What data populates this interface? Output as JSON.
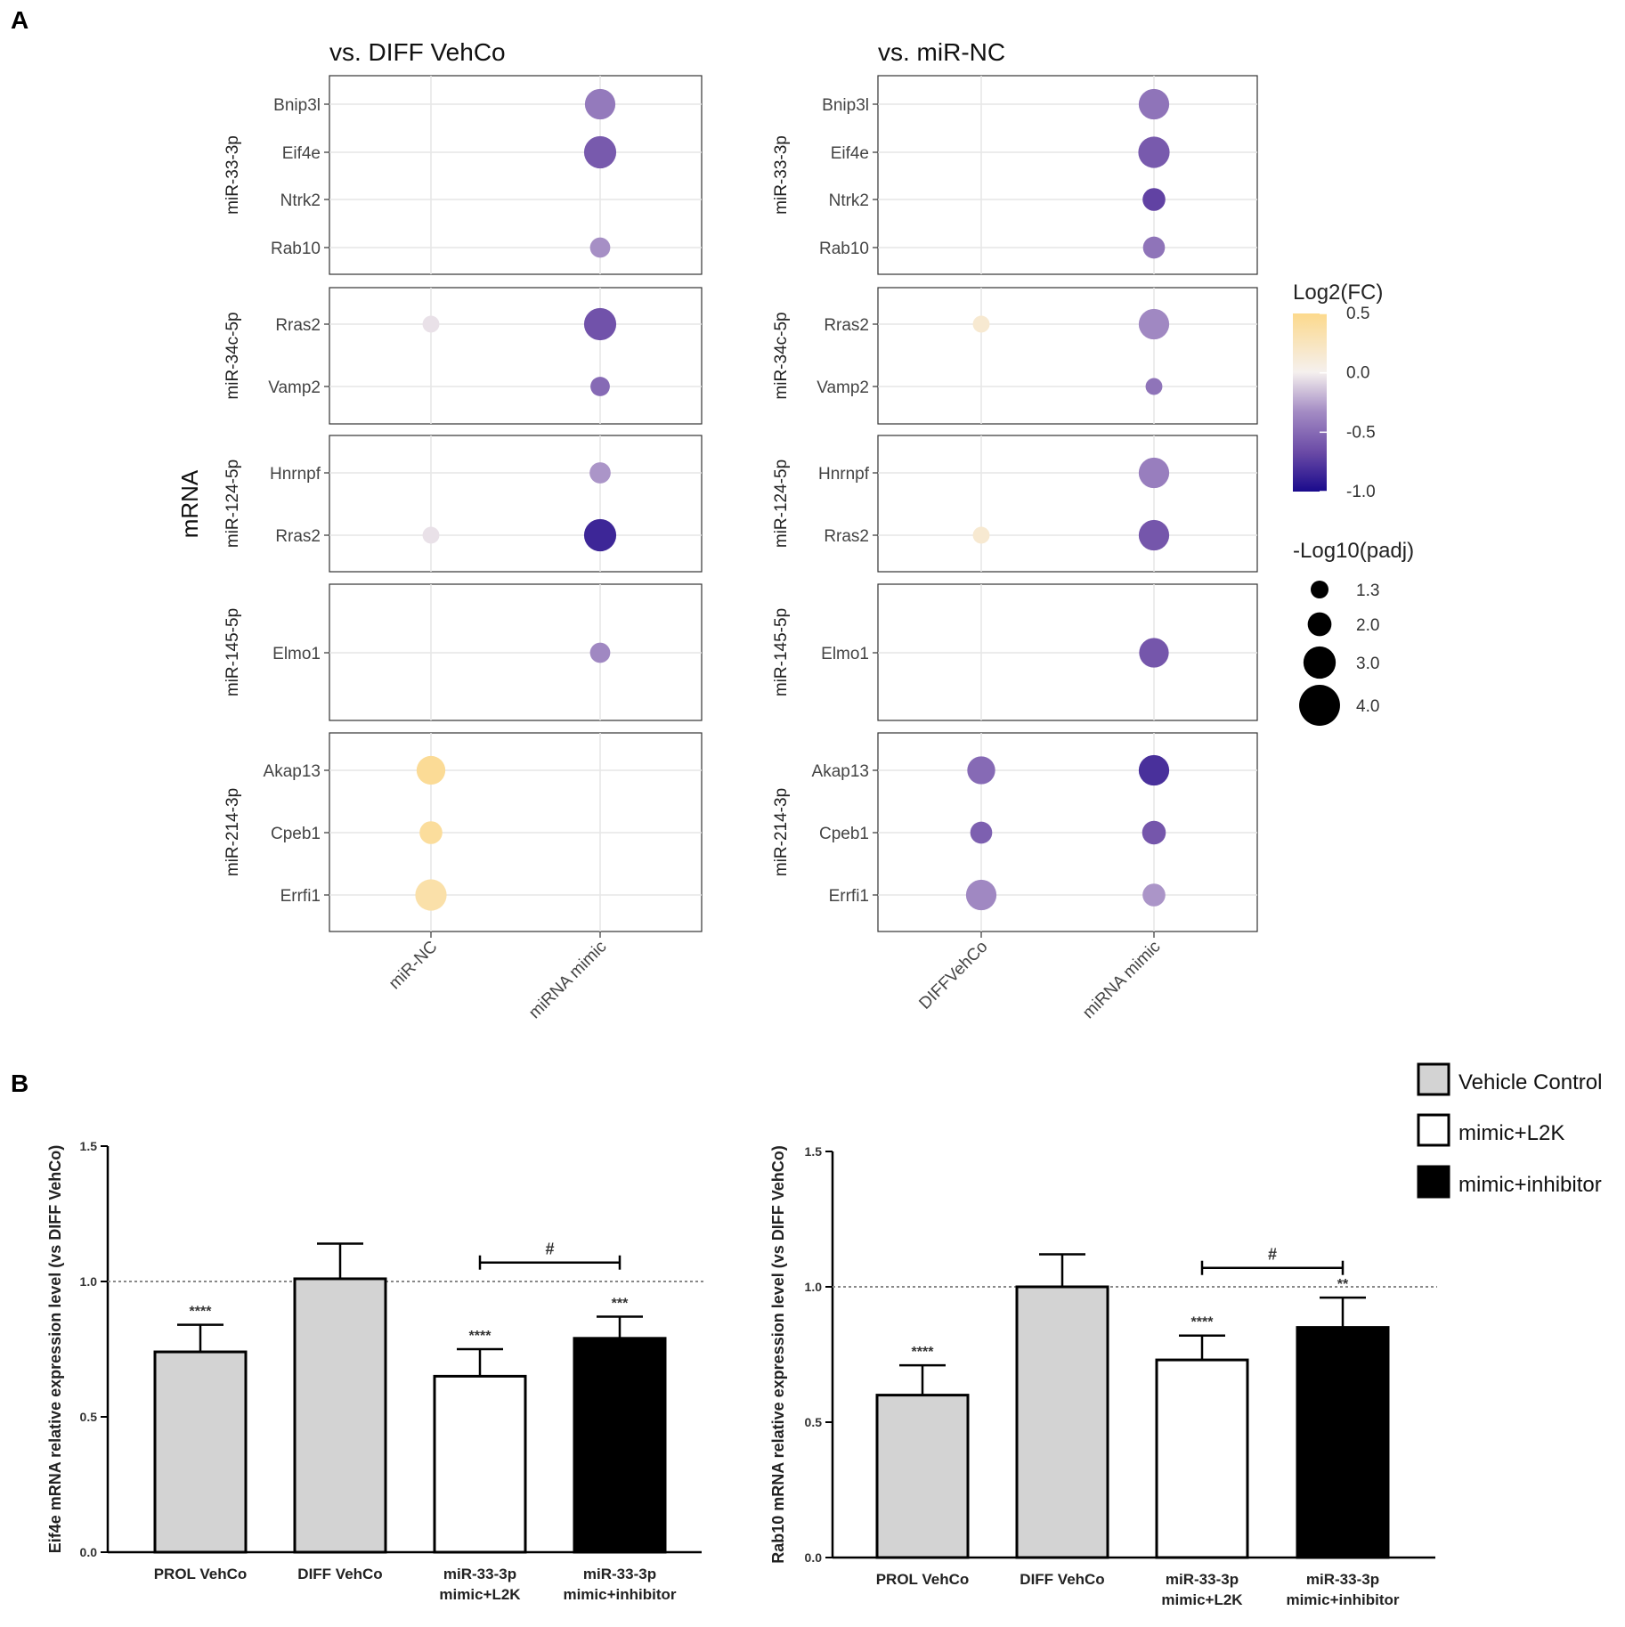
{
  "panel_labels": {
    "a": "A",
    "b": "B"
  },
  "chart_data": [
    {
      "type": "scatter",
      "subtype": "bubble",
      "title": "vs. DIFF VehCo",
      "ylabel": "mRNA",
      "categories": [
        "miR-NC",
        "miRNA mimic"
      ],
      "groups": [
        {
          "name": "miR-33-3p",
          "genes": [
            "Bnip3l",
            "Eif4e",
            "Ntrk2",
            "Rab10"
          ]
        },
        {
          "name": "miR-34c-5p",
          "genes": [
            "Rras2",
            "Vamp2"
          ]
        },
        {
          "name": "miR-124-5p",
          "genes": [
            "Hnrnpf",
            "Rras2"
          ]
        },
        {
          "name": "miR-145-5p",
          "genes": [
            "Elmo1"
          ]
        },
        {
          "name": "miR-214-3p",
          "genes": [
            "Akap13",
            "Cpeb1",
            "Errfi1"
          ]
        }
      ],
      "points": [
        {
          "group": "miR-33-3p",
          "gene": "Bnip3l",
          "x": "miRNA mimic",
          "log2fc": -0.42,
          "neglog10padj": 3.2
        },
        {
          "group": "miR-33-3p",
          "gene": "Eif4e",
          "x": "miRNA mimic",
          "log2fc": -0.58,
          "neglog10padj": 3.4
        },
        {
          "group": "miR-33-3p",
          "gene": "Rab10",
          "x": "miRNA mimic",
          "log2fc": -0.32,
          "neglog10padj": 2.0
        },
        {
          "group": "miR-34c-5p",
          "gene": "Rras2",
          "x": "miR-NC",
          "log2fc": -0.05,
          "neglog10padj": 1.6
        },
        {
          "group": "miR-34c-5p",
          "gene": "Rras2",
          "x": "miRNA mimic",
          "log2fc": -0.62,
          "neglog10padj": 3.4
        },
        {
          "group": "miR-34c-5p",
          "gene": "Vamp2",
          "x": "miRNA mimic",
          "log2fc": -0.5,
          "neglog10padj": 1.9
        },
        {
          "group": "miR-124-5p",
          "gene": "Hnrnpf",
          "x": "miRNA mimic",
          "log2fc": -0.3,
          "neglog10padj": 2.1
        },
        {
          "group": "miR-124-5p",
          "gene": "Rras2",
          "x": "miR-NC",
          "log2fc": -0.05,
          "neglog10padj": 1.6
        },
        {
          "group": "miR-124-5p",
          "gene": "Rras2",
          "x": "miRNA mimic",
          "log2fc": -0.85,
          "neglog10padj": 3.4
        },
        {
          "group": "miR-145-5p",
          "gene": "Elmo1",
          "x": "miRNA mimic",
          "log2fc": -0.35,
          "neglog10padj": 2.0
        },
        {
          "group": "miR-214-3p",
          "gene": "Akap13",
          "x": "miR-NC",
          "log2fc": 0.45,
          "neglog10padj": 3.0
        },
        {
          "group": "miR-214-3p",
          "gene": "Cpeb1",
          "x": "miR-NC",
          "log2fc": 0.42,
          "neglog10padj": 2.3
        },
        {
          "group": "miR-214-3p",
          "gene": "Errfi1",
          "x": "miR-NC",
          "log2fc": 0.35,
          "neglog10padj": 3.3
        }
      ]
    },
    {
      "type": "scatter",
      "subtype": "bubble",
      "title": "vs. miR-NC",
      "ylabel": "",
      "categories": [
        "DIFFVehCo",
        "miRNA mimic"
      ],
      "groups": [
        {
          "name": "miR-33-3p",
          "genes": [
            "Bnip3l",
            "Eif4e",
            "Ntrk2",
            "Rab10"
          ]
        },
        {
          "name": "miR-34c-5p",
          "genes": [
            "Rras2",
            "Vamp2"
          ]
        },
        {
          "name": "miR-124-5p",
          "genes": [
            "Hnrnpf",
            "Rras2"
          ]
        },
        {
          "name": "miR-145-5p",
          "genes": [
            "Elmo1"
          ]
        },
        {
          "name": "miR-214-3p",
          "genes": [
            "Akap13",
            "Cpeb1",
            "Errfi1"
          ]
        }
      ],
      "points": [
        {
          "group": "miR-33-3p",
          "gene": "Bnip3l",
          "x": "miRNA mimic",
          "log2fc": -0.45,
          "neglog10padj": 3.2
        },
        {
          "group": "miR-33-3p",
          "gene": "Eif4e",
          "x": "miRNA mimic",
          "log2fc": -0.58,
          "neglog10padj": 3.3
        },
        {
          "group": "miR-33-3p",
          "gene": "Ntrk2",
          "x": "miRNA mimic",
          "log2fc": -0.7,
          "neglog10padj": 2.3
        },
        {
          "group": "miR-33-3p",
          "gene": "Rab10",
          "x": "miRNA mimic",
          "log2fc": -0.45,
          "neglog10padj": 2.2
        },
        {
          "group": "miR-34c-5p",
          "gene": "Rras2",
          "x": "DIFFVehCo",
          "log2fc": 0.15,
          "neglog10padj": 1.6
        },
        {
          "group": "miR-34c-5p",
          "gene": "Rras2",
          "x": "miRNA mimic",
          "log2fc": -0.35,
          "neglog10padj": 3.2
        },
        {
          "group": "miR-34c-5p",
          "gene": "Vamp2",
          "x": "miRNA mimic",
          "log2fc": -0.45,
          "neglog10padj": 1.6
        },
        {
          "group": "miR-124-5p",
          "gene": "Hnrnpf",
          "x": "miRNA mimic",
          "log2fc": -0.4,
          "neglog10padj": 3.2
        },
        {
          "group": "miR-124-5p",
          "gene": "Rras2",
          "x": "DIFFVehCo",
          "log2fc": 0.15,
          "neglog10padj": 1.6
        },
        {
          "group": "miR-124-5p",
          "gene": "Rras2",
          "x": "miRNA mimic",
          "log2fc": -0.6,
          "neglog10padj": 3.2
        },
        {
          "group": "miR-145-5p",
          "gene": "Elmo1",
          "x": "miRNA mimic",
          "log2fc": -0.6,
          "neglog10padj": 3.1
        },
        {
          "group": "miR-214-3p",
          "gene": "Akap13",
          "x": "DIFFVehCo",
          "log2fc": -0.5,
          "neglog10padj": 2.9
        },
        {
          "group": "miR-214-3p",
          "gene": "Akap13",
          "x": "miRNA mimic",
          "log2fc": -0.8,
          "neglog10padj": 3.2
        },
        {
          "group": "miR-214-3p",
          "gene": "Cpeb1",
          "x": "DIFFVehCo",
          "log2fc": -0.55,
          "neglog10padj": 2.2
        },
        {
          "group": "miR-214-3p",
          "gene": "Cpeb1",
          "x": "miRNA mimic",
          "log2fc": -0.6,
          "neglog10padj": 2.4
        },
        {
          "group": "miR-214-3p",
          "gene": "Errfi1",
          "x": "DIFFVehCo",
          "log2fc": -0.35,
          "neglog10padj": 3.2
        },
        {
          "group": "miR-214-3p",
          "gene": "Errfi1",
          "x": "miRNA mimic",
          "log2fc": -0.3,
          "neglog10padj": 2.3
        }
      ]
    },
    {
      "type": "bar",
      "title": "",
      "xlabel": "",
      "ylabel": "Eif4e mRNA relative expression level (vs DIFF VehCo)",
      "ylim": [
        0,
        1.5
      ],
      "yticks": [
        0.0,
        0.5,
        1.0,
        1.5
      ],
      "ytick_labels": [
        "0.0",
        "0.5",
        "1.0",
        "1.5"
      ],
      "reference_line": 1.0,
      "categories": [
        [
          "PROL VehCo"
        ],
        [
          "DIFF VehCo"
        ],
        [
          "miR-33-3p",
          "mimic+L2K"
        ],
        [
          "miR-33-3p",
          "mimic+inhibitor"
        ]
      ],
      "values": [
        0.74,
        1.01,
        0.65,
        0.79
      ],
      "errors": [
        0.1,
        0.13,
        0.1,
        0.08
      ],
      "fills": [
        "vehicle",
        "vehicle",
        "l2k",
        "inhibitor"
      ],
      "significance": [
        "****",
        "",
        "****",
        "***"
      ],
      "comparison": {
        "from": 2,
        "to": 3,
        "label": "#"
      }
    },
    {
      "type": "bar",
      "title": "",
      "xlabel": "",
      "ylabel": "Rab10 mRNA relative expression level (vs DIFF VehCo)",
      "ylim": [
        0,
        1.5
      ],
      "yticks": [
        0.0,
        0.5,
        1.0,
        1.5
      ],
      "ytick_labels": [
        "0.0",
        "0.5",
        "1.0",
        "1.5"
      ],
      "reference_line": 1.0,
      "categories": [
        [
          "PROL VehCo"
        ],
        [
          "DIFF VehCo"
        ],
        [
          "miR-33-3p",
          "mimic+L2K"
        ],
        [
          "miR-33-3p",
          "mimic+inhibitor"
        ]
      ],
      "values": [
        0.6,
        1.0,
        0.73,
        0.85
      ],
      "errors": [
        0.11,
        0.12,
        0.09,
        0.11
      ],
      "fills": [
        "vehicle",
        "vehicle",
        "l2k",
        "inhibitor"
      ],
      "significance": [
        "****",
        "",
        "****",
        "**"
      ],
      "comparison": {
        "from": 2,
        "to": 3,
        "label": "#"
      }
    }
  ],
  "legends": {
    "color": {
      "title": "Log2(FC)",
      "min": -1.0,
      "max": 0.5,
      "ticks": [
        0.5,
        0.0,
        -0.5,
        -1.0
      ],
      "tick_labels": [
        "0.5",
        "0.0",
        "-0.5",
        "-1.0"
      ]
    },
    "size": {
      "title": "-Log10(padj)",
      "values": [
        1.3,
        2.0,
        3.0,
        4.0
      ],
      "labels": [
        "1.3",
        "2.0",
        "3.0",
        "4.0"
      ]
    },
    "bars": [
      {
        "key": "vehicle",
        "label": "Vehicle Control",
        "fill": "#d3d3d3"
      },
      {
        "key": "l2k",
        "label": "mimic+L2K",
        "fill": "#ffffff"
      },
      {
        "key": "inhibitor",
        "label": "mimic+inhibitor",
        "fill": "#000000"
      }
    ]
  },
  "colors": {
    "pos": "#fcd98c",
    "mid": "#f5f0ee",
    "neg1": "#a48cc4",
    "neg2": "#6a4aa6",
    "neg3": "#1a0a8c",
    "bar_outline": "#000000",
    "grid": "#e6e6e6"
  }
}
